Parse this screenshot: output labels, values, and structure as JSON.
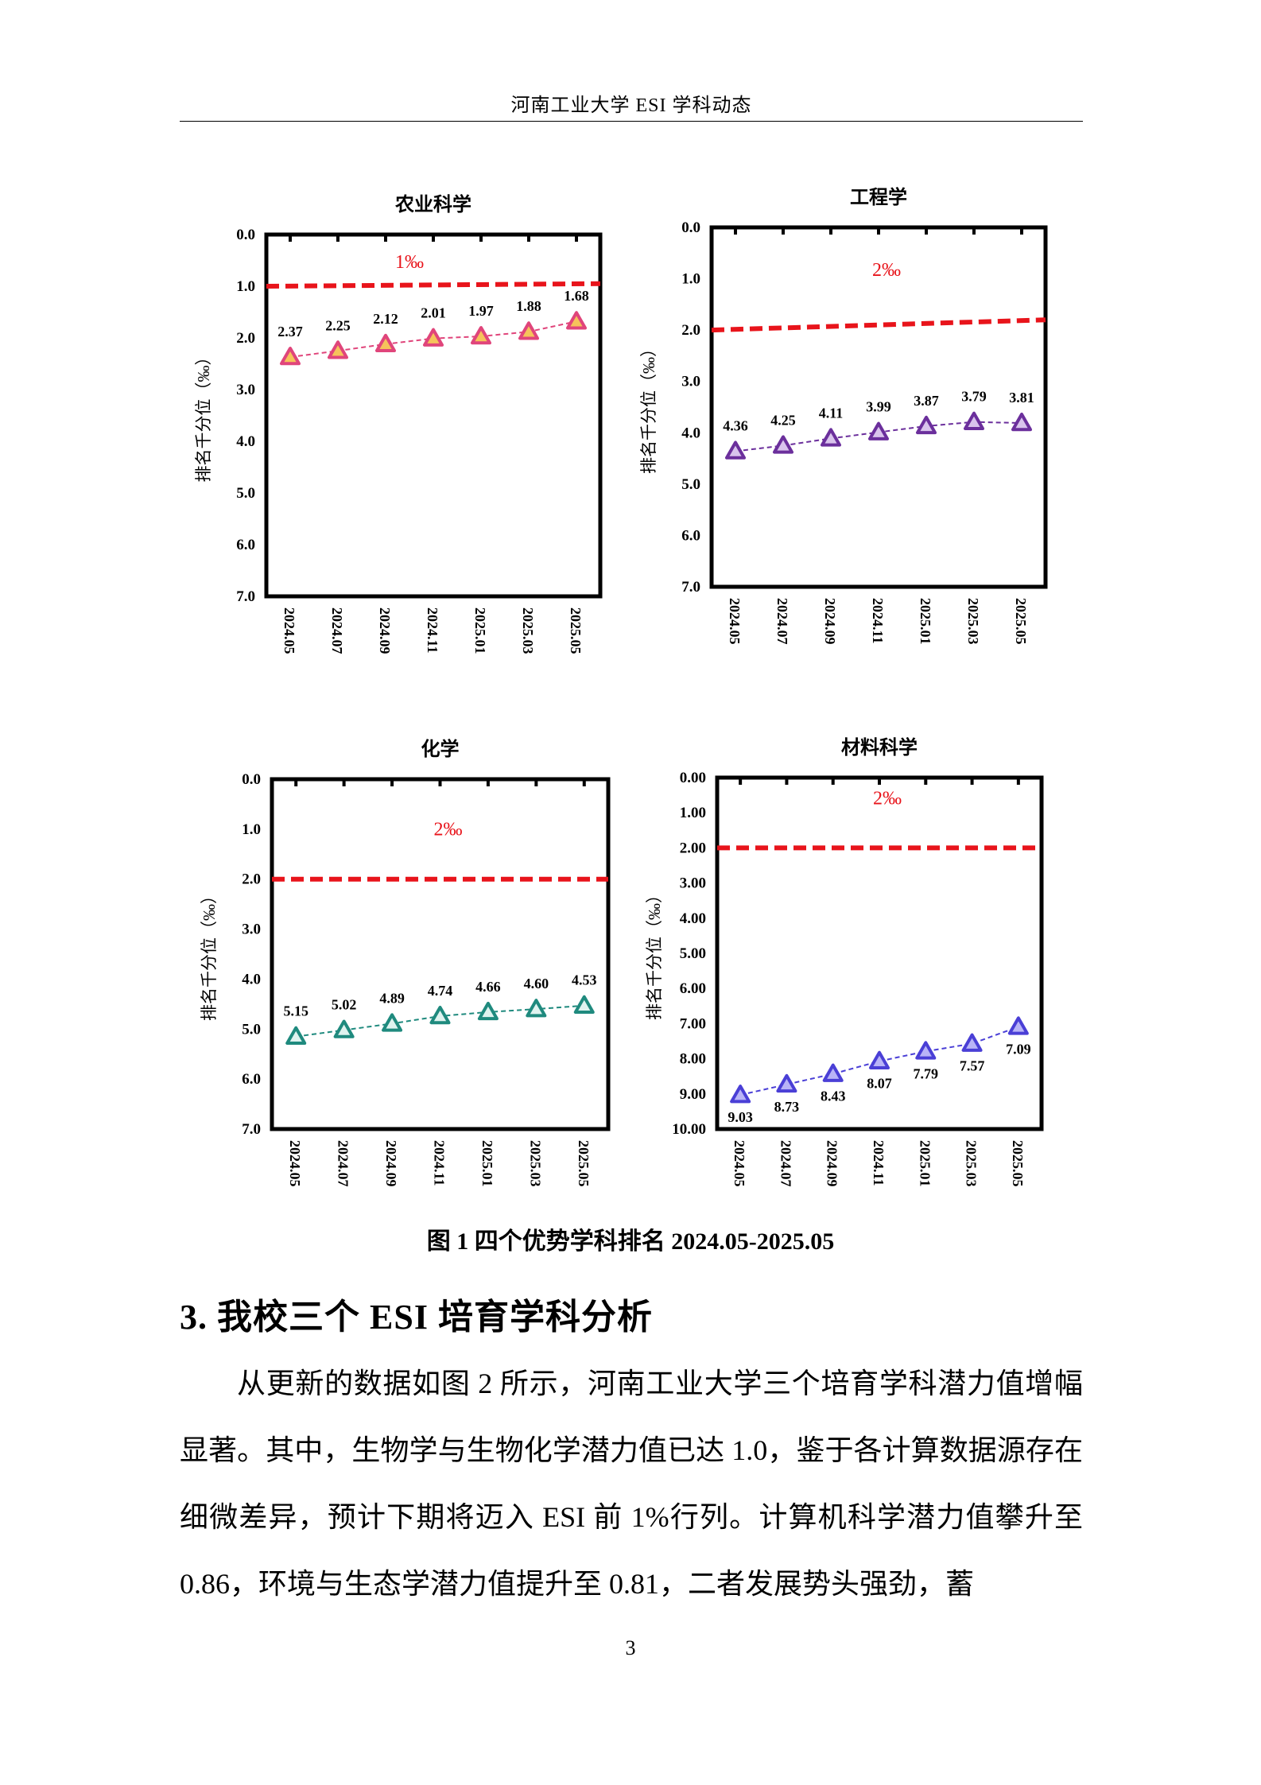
{
  "header": {
    "title": "河南工业大学 ESI 学科动态"
  },
  "chart_data": [
    {
      "type": "line",
      "title": "农业科学",
      "ylabel": "排名千分位（‰）",
      "categories": [
        "2024.05",
        "2024.07",
        "2024.09",
        "2024.11",
        "2025.01",
        "2025.03",
        "2025.05"
      ],
      "values": [
        2.37,
        2.25,
        2.12,
        2.01,
        1.97,
        1.88,
        1.68
      ],
      "value_labels": [
        "2.37",
        "2.25",
        "2.12",
        "2.01",
        "1.97",
        "1.88",
        "1.68"
      ],
      "ylim": [
        0,
        7
      ],
      "y_inverted": true,
      "yticks": [
        "0.0",
        "1.0",
        "2.0",
        "3.0",
        "4.0",
        "5.0",
        "6.0",
        "7.0"
      ],
      "threshold": {
        "value": 1.0,
        "end_value": 0.95,
        "label": "1‰",
        "color": "#e8141b"
      },
      "series_color": "#e0457b",
      "marker_fill": "#f6c35b",
      "label_position": "above",
      "grid": false
    },
    {
      "type": "line",
      "title": "工程学",
      "ylabel": "排名千分位（‰）",
      "categories": [
        "2024.05",
        "2024.07",
        "2024.09",
        "2024.11",
        "2025.01",
        "2025.03",
        "2025.05"
      ],
      "values": [
        4.36,
        4.25,
        4.11,
        3.99,
        3.87,
        3.79,
        3.81
      ],
      "value_labels": [
        "4.36",
        "4.25",
        "4.11",
        "3.99",
        "3.87",
        "3.79",
        "3.81"
      ],
      "ylim": [
        0,
        7
      ],
      "y_inverted": true,
      "yticks": [
        "0.0",
        "1.0",
        "2.0",
        "3.0",
        "4.0",
        "5.0",
        "6.0",
        "7.0"
      ],
      "threshold": {
        "value": 2.0,
        "end_value": 1.8,
        "label": "2‰",
        "color": "#e8141b"
      },
      "series_color": "#6b2f9c",
      "marker_fill": "#d9c4ec",
      "label_position": "above",
      "grid": false
    },
    {
      "type": "line",
      "title": "化学",
      "ylabel": "排名千分位（‰）",
      "categories": [
        "2024.05",
        "2024.07",
        "2024.09",
        "2024.11",
        "2025.01",
        "2025.03",
        "2025.05"
      ],
      "values": [
        5.15,
        5.02,
        4.89,
        4.74,
        4.66,
        4.6,
        4.53
      ],
      "value_labels": [
        "5.15",
        "5.02",
        "4.89",
        "4.74",
        "4.66",
        "4.60",
        "4.53"
      ],
      "ylim": [
        0,
        7
      ],
      "y_inverted": true,
      "yticks": [
        "0.0",
        "1.0",
        "2.0",
        "3.0",
        "4.0",
        "5.0",
        "6.0",
        "7.0"
      ],
      "threshold": {
        "value": 2.0,
        "end_value": 2.0,
        "label": "2‰",
        "color": "#e8141b"
      },
      "series_color": "#1f8a7e",
      "marker_fill": "#dff3ef",
      "label_position": "above",
      "grid": false
    },
    {
      "type": "line",
      "title": "材料科学",
      "ylabel": "排名千分位（‰）",
      "categories": [
        "2024.05",
        "2024.07",
        "2024.09",
        "2024.11",
        "2025.01",
        "2025.03",
        "2025.05"
      ],
      "values": [
        9.03,
        8.73,
        8.43,
        8.07,
        7.79,
        7.57,
        7.09
      ],
      "value_labels": [
        "9.03",
        "8.73",
        "8.43",
        "8.07",
        "7.79",
        "7.57",
        "7.09"
      ],
      "ylim": [
        0,
        10
      ],
      "y_inverted": true,
      "yticks": [
        "0.00",
        "1.00",
        "2.00",
        "3.00",
        "4.00",
        "5.00",
        "6.00",
        "7.00",
        "8.00",
        "9.00",
        "10.00"
      ],
      "threshold": {
        "value": 2.0,
        "end_value": 2.0,
        "label": "2‰",
        "color": "#e8141b"
      },
      "series_color": "#4a3fd6",
      "marker_fill": "#b9b4f7",
      "label_position": "below",
      "grid": false
    }
  ],
  "figure": {
    "caption": "图 1 四个优势学科排名 2024.05-2025.05"
  },
  "section": {
    "heading": "3. 我校三个 ESI 培育学科分析",
    "paragraph": "从更新的数据如图 2 所示，河南工业大学三个培育学科潜力值增幅显著。其中，生物学与生物化学潜力值已达 1.0，鉴于各计算数据源存在细微差异，预计下期将迈入 ESI 前 1%行列。计算机科学潜力值攀升至 0.86，环境与生态学潜力值提升至 0.81，二者发展势头强劲，蓄"
  },
  "page": {
    "number": "3"
  }
}
